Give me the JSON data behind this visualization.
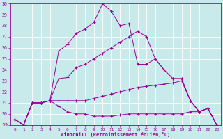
{
  "xlabel": "Windchill (Refroidissement éolien,°C)",
  "background_color": "#c8eaea",
  "grid_color": "#ffffff",
  "line_color": "#990099",
  "x_ticks": [
    0,
    1,
    2,
    3,
    4,
    5,
    6,
    7,
    8,
    9,
    10,
    11,
    12,
    13,
    14,
    15,
    16,
    17,
    18,
    19,
    20,
    21,
    22,
    23
  ],
  "ylim": [
    19,
    30
  ],
  "yticks": [
    19,
    20,
    21,
    22,
    23,
    24,
    25,
    26,
    27,
    28,
    29,
    30
  ],
  "series": [
    {
      "x": [
        0,
        1,
        2,
        3,
        4,
        5,
        6,
        7,
        8,
        9,
        10,
        11,
        12,
        13,
        14,
        15,
        16,
        17,
        18,
        19,
        20,
        21,
        22,
        23
      ],
      "y": [
        19.5,
        19,
        21.0,
        21.0,
        21.2,
        25.7,
        26.3,
        27.3,
        27.7,
        28.3,
        30.0,
        29.3,
        28.0,
        28.2,
        24.5,
        24.5,
        25.0,
        24.0,
        23.2,
        23.2,
        21.2,
        20.2,
        20.5,
        19.0
      ]
    },
    {
      "x": [
        0,
        1,
        2,
        3,
        4,
        5,
        6,
        7,
        8,
        9,
        10,
        11,
        12,
        13,
        14,
        15,
        16,
        17,
        18,
        19,
        20,
        21,
        22,
        23
      ],
      "y": [
        19.5,
        19.0,
        21.0,
        21.0,
        21.2,
        23.2,
        23.3,
        24.2,
        24.5,
        25.0,
        25.5,
        26.0,
        26.5,
        27.0,
        27.5,
        27.0,
        25.0,
        24.0,
        23.2,
        23.2,
        21.2,
        20.2,
        20.5,
        19.0
      ]
    },
    {
      "x": [
        0,
        1,
        2,
        3,
        4,
        5,
        6,
        7,
        8,
        9,
        10,
        11,
        12,
        13,
        14,
        15,
        16,
        17,
        18,
        19,
        20,
        21,
        22,
        23
      ],
      "y": [
        19.5,
        19.0,
        21.0,
        21.0,
        21.2,
        21.2,
        21.2,
        21.2,
        21.2,
        21.4,
        21.6,
        21.8,
        22.0,
        22.2,
        22.4,
        22.5,
        22.6,
        22.7,
        22.8,
        23.0,
        21.2,
        20.2,
        20.5,
        19.0
      ]
    },
    {
      "x": [
        0,
        1,
        2,
        3,
        4,
        5,
        6,
        7,
        8,
        9,
        10,
        11,
        12,
        13,
        14,
        15,
        16,
        17,
        18,
        19,
        20,
        21,
        22,
        23
      ],
      "y": [
        19.5,
        19.0,
        21.0,
        21.0,
        21.2,
        20.7,
        20.2,
        20.0,
        20.0,
        19.8,
        19.8,
        19.8,
        19.9,
        20.0,
        20.0,
        20.0,
        20.0,
        20.0,
        20.0,
        20.0,
        20.2,
        20.2,
        20.5,
        19.0
      ]
    }
  ]
}
